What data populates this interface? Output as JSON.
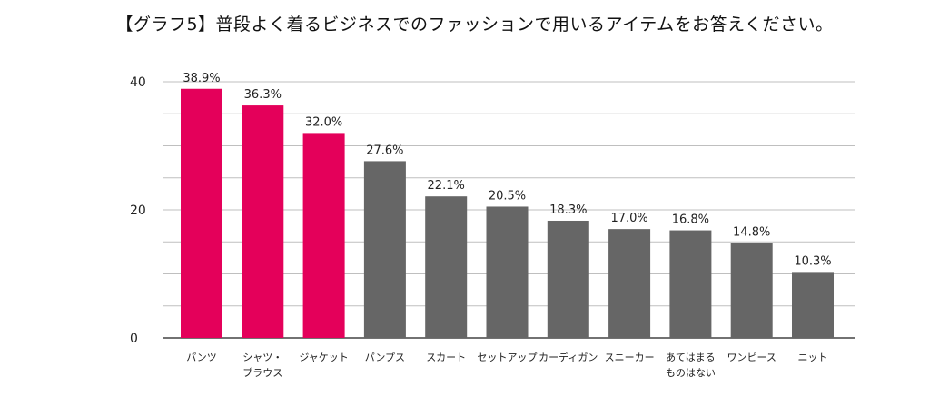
{
  "chart_data": {
    "type": "bar",
    "title": "【グラフ5】普段よく着るビジネスでのファッションで用いるアイテムをお答えください。",
    "categories": [
      [
        "パンツ"
      ],
      [
        "シャツ・",
        "ブラウス"
      ],
      [
        "ジャケット"
      ],
      [
        "パンプス"
      ],
      [
        "スカート"
      ],
      [
        "セットアップ"
      ],
      [
        "カーディガン"
      ],
      [
        "スニーカー"
      ],
      [
        "あてはまる",
        "ものはない"
      ],
      [
        "ワンピース"
      ],
      [
        "ニット"
      ]
    ],
    "values": [
      38.9,
      36.3,
      32.0,
      27.6,
      22.1,
      20.5,
      18.3,
      17.0,
      16.8,
      14.8,
      10.3
    ],
    "value_labels": [
      "38.9%",
      "36.3%",
      "32.0%",
      "27.6%",
      "22.1%",
      "20.5%",
      "18.3%",
      "17.0%",
      "16.8%",
      "14.8%",
      "10.3%"
    ],
    "highlight_count": 3,
    "colors": {
      "highlight": "#e4005a",
      "default": "#666666",
      "grid": "#bfbfbf",
      "axis": "#444444"
    },
    "ylim": [
      0,
      40
    ],
    "yticks": [
      0,
      20,
      40
    ],
    "grid_step": 5,
    "grid": true
  }
}
